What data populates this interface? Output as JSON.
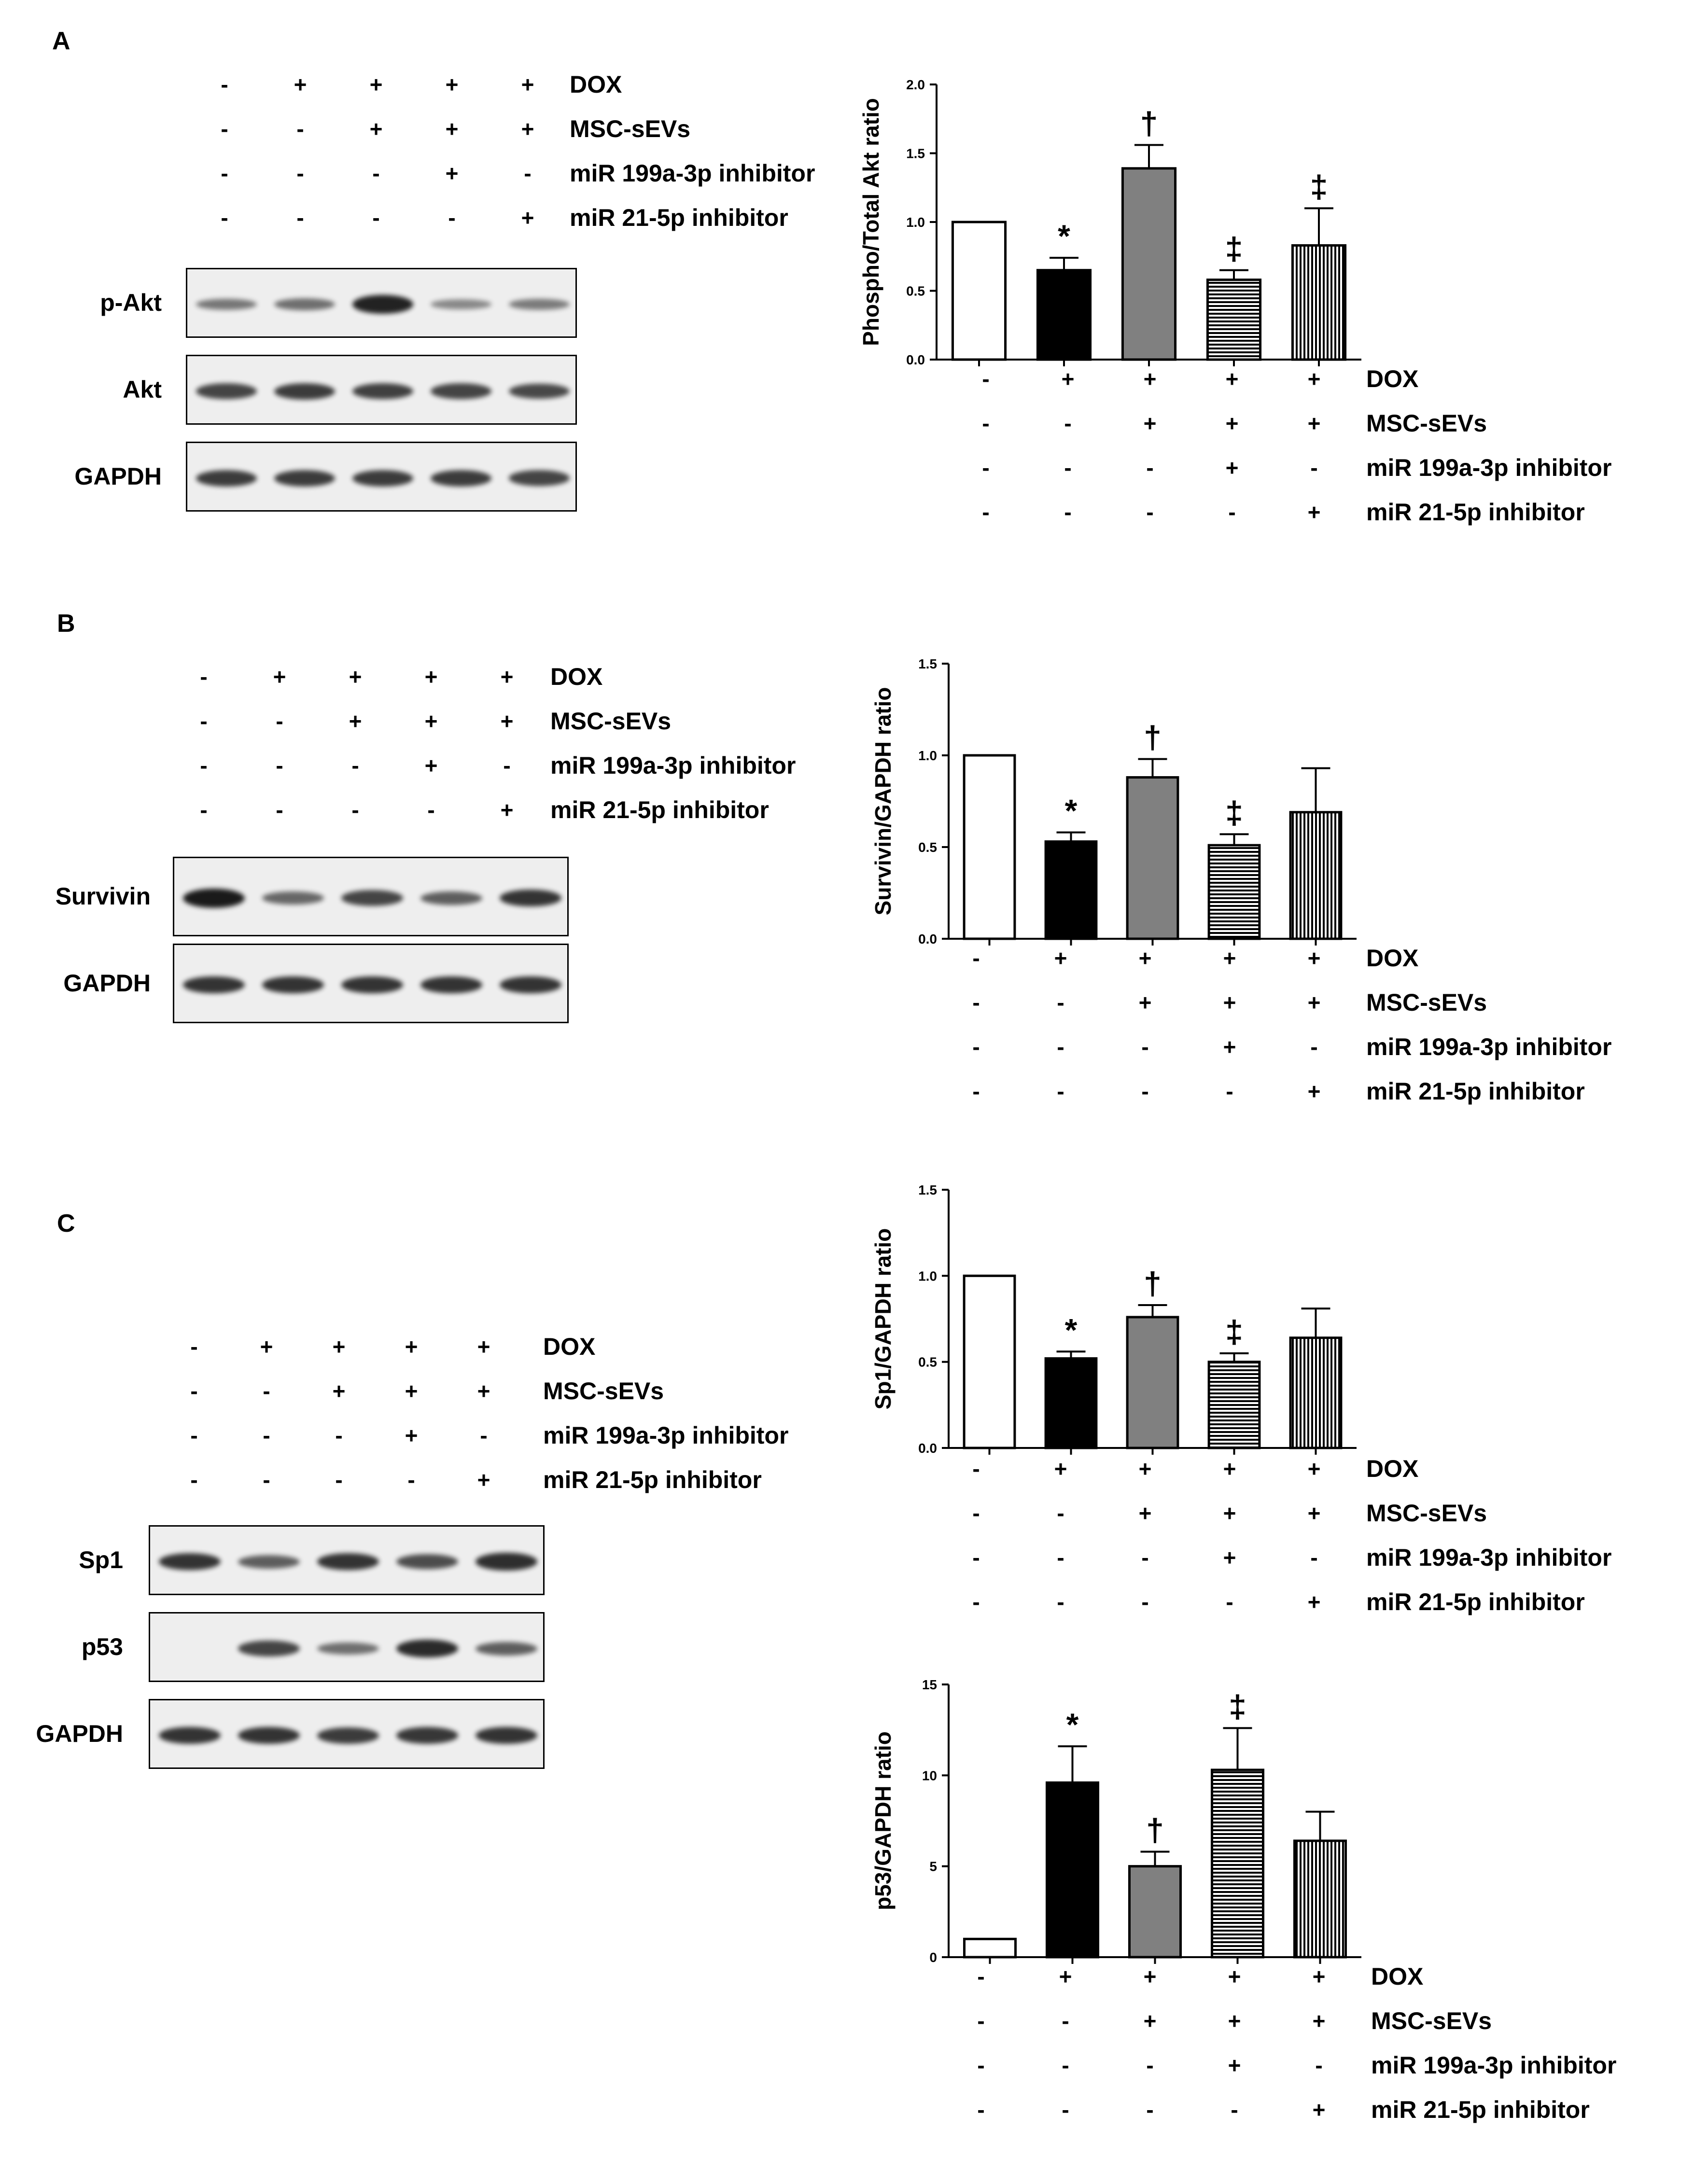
{
  "conditions": {
    "labels": [
      "DOX",
      "MSC-sEVs",
      "miR 199a-3p inhibitor",
      "miR 21-5p inhibitor"
    ],
    "rows": [
      [
        "-",
        "+",
        "+",
        "+",
        "+"
      ],
      [
        "-",
        "-",
        "+",
        "+",
        "+"
      ],
      [
        "-",
        "-",
        "-",
        "+",
        "-"
      ],
      [
        "-",
        "-",
        "-",
        "-",
        "+"
      ]
    ]
  },
  "panels": {
    "A": {
      "letter": "A",
      "blots": [
        {
          "label": "p-Akt",
          "intensity": [
            0.45,
            0.5,
            0.95,
            0.35,
            0.42
          ]
        },
        {
          "label": "Akt",
          "intensity": [
            0.75,
            0.8,
            0.78,
            0.75,
            0.72
          ]
        },
        {
          "label": "GAPDH",
          "intensity": [
            0.8,
            0.8,
            0.8,
            0.8,
            0.75
          ]
        }
      ]
    },
    "B": {
      "letter": "B",
      "blots": [
        {
          "label": "Survivin",
          "intensity": [
            1.0,
            0.55,
            0.75,
            0.6,
            0.85
          ]
        },
        {
          "label": "GAPDH",
          "intensity": [
            0.85,
            0.85,
            0.85,
            0.85,
            0.85
          ]
        }
      ]
    },
    "C": {
      "letter": "C",
      "blots": [
        {
          "label": "Sp1",
          "intensity": [
            0.85,
            0.6,
            0.85,
            0.7,
            0.88
          ]
        },
        {
          "label": "p53",
          "intensity": [
            0.0,
            0.75,
            0.5,
            0.9,
            0.6
          ]
        },
        {
          "label": "GAPDH",
          "intensity": [
            0.85,
            0.85,
            0.8,
            0.82,
            0.85
          ]
        }
      ]
    }
  },
  "chart_data": [
    {
      "type": "bar",
      "categories": [
        "1",
        "2",
        "3",
        "4",
        "5"
      ],
      "values": [
        1.0,
        0.65,
        1.39,
        0.58,
        0.83
      ],
      "errors": [
        0,
        0.09,
        0.17,
        0.07,
        0.27
      ],
      "annotations": [
        "",
        "*",
        "†",
        "‡",
        "‡"
      ],
      "ylabel": "Phospho/Total Akt ratio",
      "ylim": [
        0,
        2.0
      ],
      "yticks": [
        "0.0",
        "0.5",
        "1.0",
        "1.5",
        "2.0"
      ],
      "yticks_values": [
        0,
        0.5,
        1.0,
        1.5,
        2.0
      ]
    },
    {
      "type": "bar",
      "categories": [
        "1",
        "2",
        "3",
        "4",
        "5"
      ],
      "values": [
        1.0,
        0.53,
        0.88,
        0.51,
        0.69
      ],
      "errors": [
        0,
        0.05,
        0.1,
        0.06,
        0.24
      ],
      "annotations": [
        "",
        "*",
        "†",
        "‡",
        ""
      ],
      "ylabel": "Survivin/GAPDH ratio",
      "ylim": [
        0,
        1.5
      ],
      "yticks": [
        "0.0",
        "0.5",
        "1.0",
        "1.5"
      ],
      "yticks_values": [
        0,
        0.5,
        1.0,
        1.5
      ]
    },
    {
      "type": "bar",
      "categories": [
        "1",
        "2",
        "3",
        "4",
        "5"
      ],
      "values": [
        1.0,
        0.52,
        0.76,
        0.5,
        0.64
      ],
      "errors": [
        0,
        0.04,
        0.07,
        0.05,
        0.17
      ],
      "annotations": [
        "",
        "*",
        "†",
        "‡",
        ""
      ],
      "ylabel": "Sp1/GAPDH ratio",
      "ylim": [
        0,
        1.5
      ],
      "yticks": [
        "0.0",
        "0.5",
        "1.0",
        "1.5"
      ],
      "yticks_values": [
        0,
        0.5,
        1.0,
        1.5
      ]
    },
    {
      "type": "bar",
      "categories": [
        "1",
        "2",
        "3",
        "4",
        "5"
      ],
      "values": [
        1.0,
        9.6,
        5.0,
        10.3,
        6.4
      ],
      "errors": [
        0,
        2.0,
        0.8,
        2.3,
        1.6
      ],
      "annotations": [
        "",
        "*",
        "†",
        "‡",
        ""
      ],
      "ylabel": "p53/GAPDH ratio",
      "ylim": [
        0,
        15
      ],
      "yticks": [
        "0",
        "5",
        "10",
        "15"
      ],
      "yticks_values": [
        0,
        5,
        10,
        15
      ]
    }
  ]
}
